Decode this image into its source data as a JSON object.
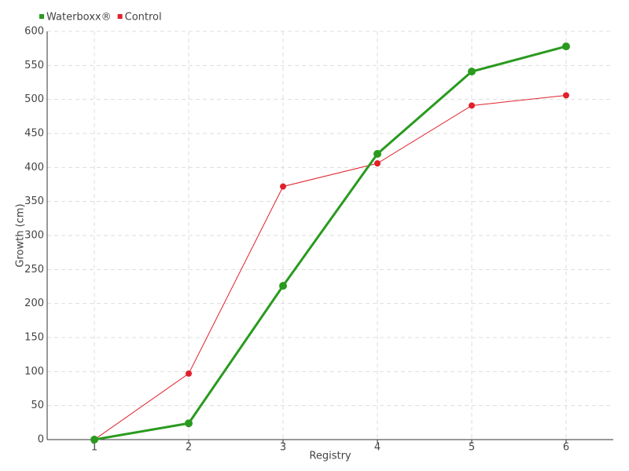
{
  "chart_data": {
    "type": "line",
    "x_label": "Registry",
    "y_label": "Growth (cm)",
    "categories": [
      "1",
      "2",
      "3",
      "4",
      "5",
      "6"
    ],
    "series": [
      {
        "name": "Waterboxx®",
        "color": "#2a9a1f",
        "values": [
          0,
          24,
          226,
          420,
          541,
          578
        ]
      },
      {
        "name": "Control",
        "color": "#e0202a",
        "values": [
          0,
          97,
          372,
          406,
          491,
          506
        ]
      }
    ],
    "ylim": [
      0,
      600
    ],
    "yticks": [
      0,
      50,
      100,
      150,
      200,
      250,
      300,
      350,
      400,
      450,
      500,
      550,
      600
    ],
    "grid": true,
    "legend": "top-left"
  }
}
